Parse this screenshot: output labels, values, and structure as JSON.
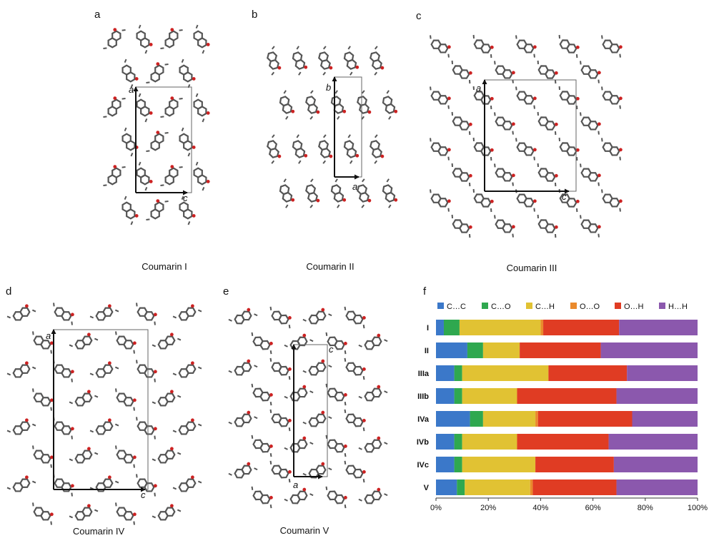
{
  "panels": {
    "a": {
      "letter": "a",
      "caption": "Coumarin I",
      "axis_v": "a",
      "axis_h": "c"
    },
    "b": {
      "letter": "b",
      "caption": "Coumarin II",
      "axis_v": "b",
      "axis_h": "a"
    },
    "c": {
      "letter": "c",
      "caption": "Coumarin III",
      "axis_v": "a",
      "axis_h": "c"
    },
    "d": {
      "letter": "d",
      "caption": "Coumarin IV",
      "axis_v": "a",
      "axis_h": "c"
    },
    "e": {
      "letter": "e",
      "caption": "Coumarin V",
      "axis_v": "c",
      "axis_h": "a"
    },
    "f": {
      "letter": "f"
    }
  },
  "colors": {
    "atom_carbon": "#555555",
    "atom_oxygen": "#cc2222",
    "cell": "#666666"
  },
  "chart_data": {
    "type": "bar",
    "orientation": "horizontal",
    "stacked": true,
    "categories": [
      "I",
      "II",
      "IIIa",
      "IIIb",
      "IVa",
      "IVb",
      "IVc",
      "V"
    ],
    "series": [
      {
        "name": "C…C",
        "color": "#3b78c9",
        "values": [
          3,
          12,
          7,
          7,
          13,
          7,
          7,
          8
        ]
      },
      {
        "name": "C…O",
        "color": "#2fa84f",
        "values": [
          6,
          6,
          3,
          3,
          5,
          3,
          3,
          3
        ]
      },
      {
        "name": "C…H",
        "color": "#e1c233",
        "values": [
          31,
          14,
          33,
          21,
          20,
          21,
          28,
          25
        ]
      },
      {
        "name": "O…O",
        "color": "#ea8a2c",
        "values": [
          1,
          0,
          0,
          0,
          1,
          0,
          0,
          1
        ]
      },
      {
        "name": "O…H",
        "color": "#e03c23",
        "values": [
          29,
          31,
          30,
          38,
          36,
          35,
          30,
          32
        ]
      },
      {
        "name": "H…H",
        "color": "#8b58ad",
        "values": [
          30,
          37,
          27,
          31,
          25,
          34,
          32,
          31
        ]
      }
    ],
    "xlim": [
      0,
      100
    ],
    "xticks": [
      "0%",
      "20%",
      "40%",
      "60%",
      "80%",
      "100%"
    ],
    "legend": "top"
  }
}
